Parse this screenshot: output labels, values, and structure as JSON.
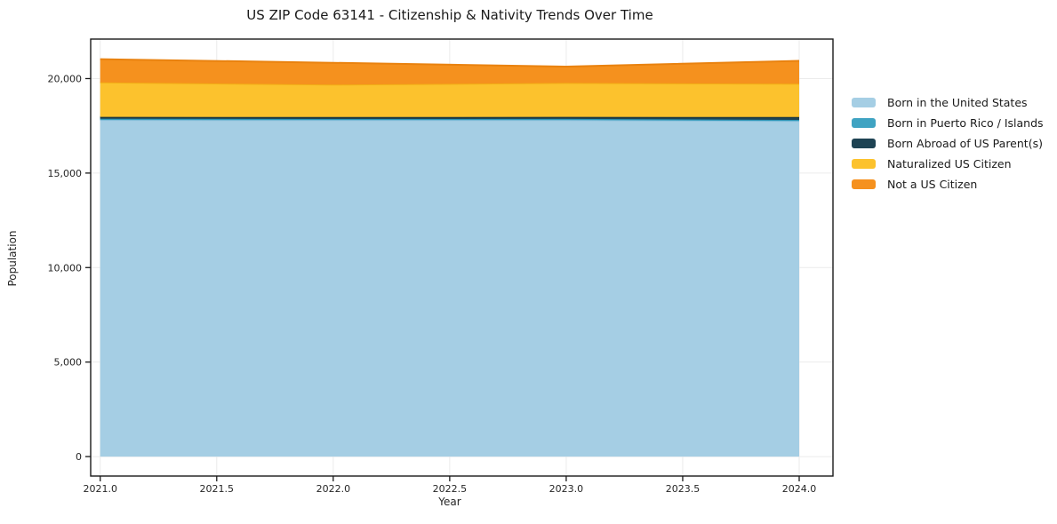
{
  "chart_data": {
    "type": "area",
    "stacked": true,
    "title": "US ZIP Code 63141 - Citizenship & Nativity Trends Over Time",
    "xlabel": "Year",
    "ylabel": "Population",
    "x": [
      2021,
      2022,
      2023,
      2024
    ],
    "series": [
      {
        "name": "Born in the United States",
        "fill": "#a5cee4",
        "line": "#8fc2dd",
        "values": [
          17810,
          17800,
          17805,
          17755
        ]
      },
      {
        "name": "Born in Puerto Rico / Islands",
        "fill": "#3fa3c2",
        "line": "#2d94b5",
        "values": [
          60,
          60,
          60,
          60
        ]
      },
      {
        "name": "Born Abroad of US Parent(s)",
        "fill": "#1e4353",
        "line": "#14303c",
        "values": [
          105,
          105,
          110,
          150
        ]
      },
      {
        "name": "Naturalized US Citizen",
        "fill": "#fcc22d",
        "line": "#f2ae15",
        "values": [
          1825,
          1715,
          1795,
          1760
        ]
      },
      {
        "name": "Not a US Citizen",
        "fill": "#f5911e",
        "line": "#e9820f",
        "values": [
          1230,
          1155,
          865,
          1215
        ]
      }
    ],
    "x_ticks": {
      "values": [
        2021.0,
        2021.5,
        2022.0,
        2022.5,
        2023.0,
        2023.5,
        2024.0
      ],
      "labels": [
        "2021.0",
        "2021.5",
        "2022.0",
        "2022.5",
        "2023.0",
        "2023.5",
        "2024.0"
      ]
    },
    "y_ticks": {
      "values": [
        0,
        5000,
        10000,
        15000,
        20000
      ],
      "labels": [
        "0",
        "5,000",
        "10,000",
        "15,000",
        "20,000"
      ]
    },
    "x_range": [
      2020.959,
      2024.145
    ],
    "y_range": [
      -1030,
      22090
    ],
    "grid": true,
    "legend_position": "right",
    "colors": {
      "frame": "#1a1a1a",
      "grid": "#ebebeb",
      "text": "#262626"
    }
  }
}
